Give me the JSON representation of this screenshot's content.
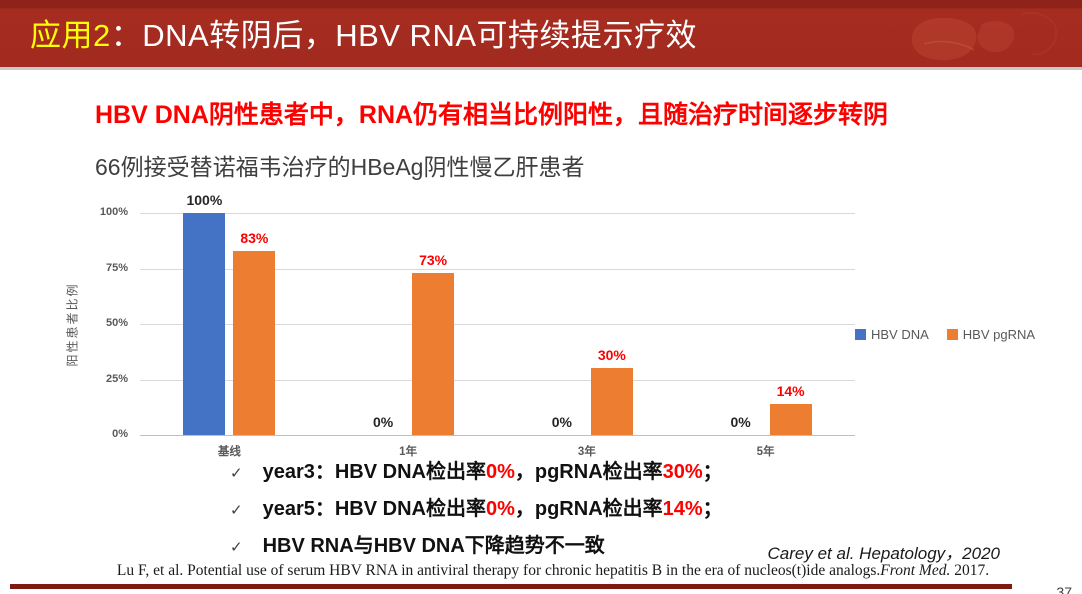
{
  "slide": {
    "header": {
      "title_highlight": "应用2",
      "title_rest": "：DNA转阴后，HBV RNA可持续提示疗效"
    },
    "heading_red": "HBV DNA阴性患者中，RNA仍有相当比例阳性，且随治疗时间逐步转阴",
    "subtitle": "66例接受替诺福韦治疗的HBeAg阴性慢乙肝患者",
    "bullets": [
      {
        "segments": [
          {
            "t": "year3：HBV DNA检出率",
            "red": false
          },
          {
            "t": "0%",
            "red": true
          },
          {
            "t": "，pgRNA检出率",
            "red": false
          },
          {
            "t": "30%",
            "red": true
          },
          {
            "t": "；",
            "red": false
          }
        ]
      },
      {
        "segments": [
          {
            "t": "year5：HBV DNA检出率",
            "red": false
          },
          {
            "t": "0%",
            "red": true
          },
          {
            "t": "，pgRNA检出率",
            "red": false
          },
          {
            "t": "14%",
            "red": true
          },
          {
            "t": "；",
            "red": false
          }
        ]
      },
      {
        "segments": [
          {
            "t": "HBV RNA与HBV DNA下降趋势不一致",
            "red": false
          }
        ]
      }
    ],
    "citation": "Carey et al.  Hepatology，2020",
    "reference": {
      "before": "Lu F, et al. Potential use of serum HBV RNA in antiviral therapy for chronic hepatitis B in the era of nucleos(t)ide analogs.",
      "italic": "Front Med.",
      "after": " 2017."
    },
    "page_number": "37"
  },
  "chart_data": {
    "type": "bar",
    "title": "",
    "categories": [
      "基线",
      "1年",
      "3年",
      "5年"
    ],
    "series": [
      {
        "name": "HBV DNA",
        "color": "#4472C4",
        "label_color": "#262626",
        "values": [
          100,
          0,
          0,
          0
        ]
      },
      {
        "name": "HBV pgRNA",
        "color": "#ED7D31",
        "label_color": "#FF0000",
        "values": [
          83,
          73,
          30,
          14
        ]
      }
    ],
    "ylabel": "阳性患者比例",
    "yticks": [
      0,
      25,
      50,
      75,
      100
    ],
    "ytick_labels": [
      "0%",
      "25%",
      "50%",
      "75%",
      "100%"
    ],
    "ylim": [
      0,
      100
    ],
    "grid": true,
    "legend_position": "right",
    "data_label_suffix": "%"
  }
}
